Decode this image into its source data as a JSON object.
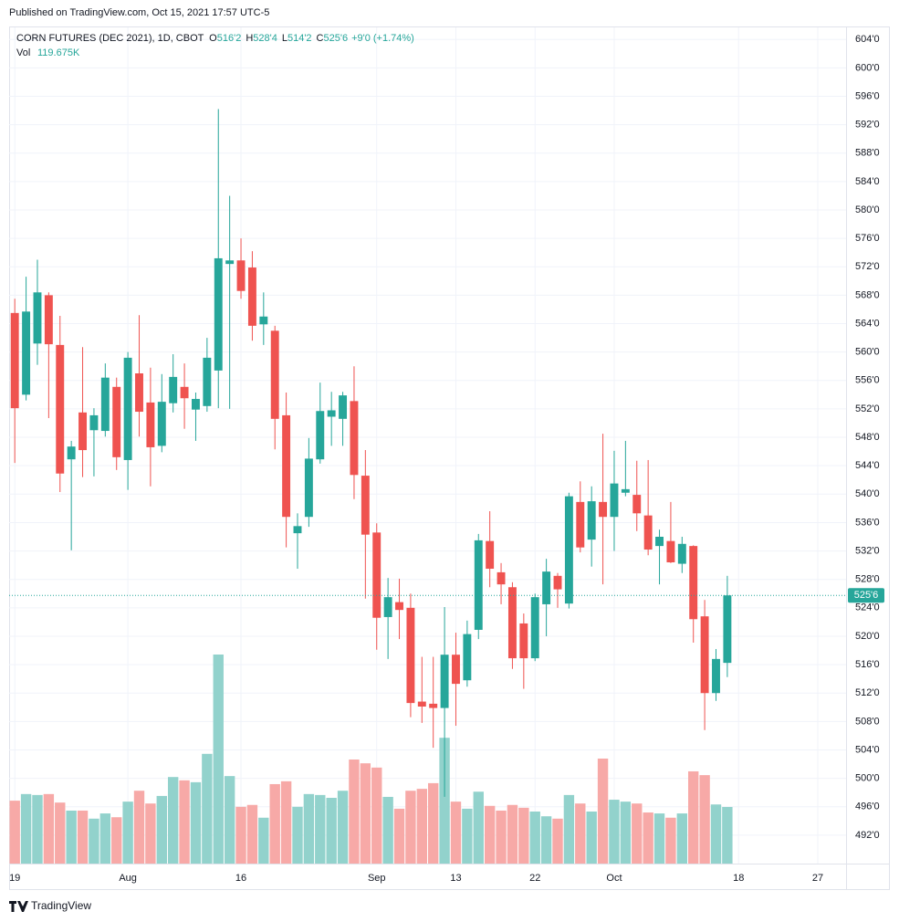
{
  "published": "Published on TradingView.com, Oct 15, 2021 17:57 UTC-5",
  "footer": "TradingView",
  "chart_data": {
    "type": "candlestick",
    "title": "CORN FUTURES (DEC 2021), 1D, CBOT",
    "ohlc_legend": [
      {
        "key": "O",
        "value": "516'2"
      },
      {
        "key": "H",
        "value": "528'4"
      },
      {
        "key": "L",
        "value": "514'2"
      },
      {
        "key": "C",
        "value": "525'6"
      }
    ],
    "change": "+9'0 (+1.74%)",
    "volume_name": "Vol",
    "volume_label": "119.675K",
    "last_price_label": "525'6",
    "up_color": "#26a69a",
    "down_color": "#ef5350",
    "volume_up_color": "#92d2cc",
    "volume_down_color": "#f7a9a7",
    "grid": true,
    "xlim": [
      -0.5,
      73.5
    ],
    "xticks": [
      {
        "value": 0,
        "label": "19"
      },
      {
        "value": 10,
        "label": "Aug"
      },
      {
        "value": 20,
        "label": "16"
      },
      {
        "value": 32,
        "label": "Sep"
      },
      {
        "value": 39,
        "label": "13"
      },
      {
        "value": 46,
        "label": "22"
      },
      {
        "value": 53,
        "label": "Oct"
      },
      {
        "value": 64,
        "label": "18"
      },
      {
        "value": 71,
        "label": "27"
      }
    ],
    "ylim": [
      488,
      605.7
    ],
    "yticks": [
      {
        "value": 492,
        "label": "492'0"
      },
      {
        "value": 496,
        "label": "496'0"
      },
      {
        "value": 500,
        "label": "500'0"
      },
      {
        "value": 504,
        "label": "504'0"
      },
      {
        "value": 508,
        "label": "508'0"
      },
      {
        "value": 512,
        "label": "512'0"
      },
      {
        "value": 516,
        "label": "516'0"
      },
      {
        "value": 520,
        "label": "520'0"
      },
      {
        "value": 524,
        "label": "524'0"
      },
      {
        "value": 528,
        "label": "528'0"
      },
      {
        "value": 532,
        "label": "532'0"
      },
      {
        "value": 536,
        "label": "536'0"
      },
      {
        "value": 540,
        "label": "540'0"
      },
      {
        "value": 544,
        "label": "544'0"
      },
      {
        "value": 548,
        "label": "548'0"
      },
      {
        "value": 552,
        "label": "552'0"
      },
      {
        "value": 556,
        "label": "556'0"
      },
      {
        "value": 560,
        "label": "560'0"
      },
      {
        "value": 564,
        "label": "564'0"
      },
      {
        "value": 568,
        "label": "568'0"
      },
      {
        "value": 572,
        "label": "572'0"
      },
      {
        "value": 576,
        "label": "576'0"
      },
      {
        "value": 580,
        "label": "580'0"
      },
      {
        "value": 584,
        "label": "584'0"
      },
      {
        "value": 588,
        "label": "588'0"
      },
      {
        "value": 592,
        "label": "592'0"
      },
      {
        "value": 596,
        "label": "596'0"
      },
      {
        "value": 600,
        "label": "600'0"
      },
      {
        "value": 604,
        "label": "604'0"
      }
    ],
    "y2lim": [
      0,
      1768
    ],
    "open": [
      565.5,
      554.0,
      561.2,
      568.0,
      561.0,
      544.9,
      551.5,
      549.0,
      548.9,
      555.1,
      544.8,
      557.0,
      552.9,
      546.8,
      552.8,
      555.1,
      551.9,
      552.4,
      557.4,
      572.4,
      572.9,
      571.9,
      563.9,
      563.0,
      551.1,
      534.5,
      536.8,
      544.9,
      550.9,
      550.6,
      553.1,
      542.6,
      534.6,
      522.7,
      524.8,
      524.0,
      510.8,
      510.5,
      509.9,
      517.4,
      513.8,
      520.9,
      533.4,
      529.0,
      526.9,
      521.8,
      516.9,
      524.5,
      528.5,
      524.6,
      538.9,
      533.6,
      538.9,
      536.8,
      540.2,
      539.9,
      537.0,
      532.7,
      533.4,
      530.2,
      532.7,
      522.8,
      512.0,
      516.25
    ],
    "high": [
      567.5,
      570.6,
      573.0,
      568.4,
      565.1,
      547.5,
      560.7,
      552.1,
      558.4,
      556.4,
      560.0,
      565.2,
      557.8,
      556.9,
      559.7,
      558.4,
      554.3,
      562.0,
      594.2,
      582.0,
      576.0,
      574.2,
      568.4,
      563.7,
      554.3,
      537.3,
      547.9,
      555.7,
      554.4,
      554.4,
      558.0,
      546.2,
      535.9,
      528.2,
      528.1,
      526.0,
      517.1,
      517.1,
      524.1,
      520.5,
      522.2,
      534.4,
      537.6,
      530.3,
      527.6,
      523.2,
      526.0,
      530.9,
      528.9,
      540.2,
      541.8,
      541.1,
      548.5,
      546.1,
      547.5,
      544.7,
      544.8,
      535.0,
      538.9,
      534.0,
      532.8,
      525.1,
      518.2,
      528.5
    ],
    "low": [
      544.4,
      553.2,
      558.2,
      550.7,
      540.3,
      532.1,
      542.4,
      542.5,
      548.1,
      543.4,
      540.6,
      548.1,
      541.1,
      545.9,
      551.5,
      549.2,
      547.5,
      551.6,
      552.1,
      552.0,
      567.5,
      561.6,
      561.0,
      546.3,
      532.5,
      529.5,
      535.4,
      544.3,
      546.8,
      546.8,
      539.3,
      525.3,
      518.1,
      516.8,
      519.6,
      508.6,
      507.8,
      504.3,
      497.4,
      507.4,
      512.9,
      519.6,
      526.9,
      524.5,
      515.4,
      512.6,
      516.5,
      520.0,
      524.0,
      523.9,
      531.8,
      529.8,
      527.3,
      532.0,
      539.7,
      534.8,
      531.4,
      527.3,
      530.3,
      528.9,
      519.1,
      506.8,
      510.9,
      514.25
    ],
    "close": [
      552.1,
      565.7,
      568.4,
      561.1,
      542.9,
      546.7,
      546.2,
      551.1,
      556.4,
      545.2,
      559.2,
      551.6,
      546.6,
      553.0,
      556.5,
      553.5,
      553.4,
      559.2,
      573.2,
      572.9,
      568.6,
      563.7,
      565.0,
      550.6,
      536.8,
      535.5,
      545.0,
      551.7,
      551.8,
      553.9,
      542.7,
      534.3,
      522.6,
      525.5,
      523.7,
      510.6,
      510.1,
      509.9,
      517.4,
      513.3,
      520.3,
      533.5,
      529.5,
      527.3,
      516.9,
      516.9,
      525.5,
      529.1,
      526.6,
      539.7,
      532.5,
      539.0,
      536.8,
      541.5,
      540.7,
      537.3,
      532.2,
      534.0,
      530.4,
      533.0,
      522.4,
      512.0,
      516.8,
      525.75
    ],
    "volume": [
      133,
      147,
      145,
      147,
      129,
      112,
      112,
      95,
      106,
      98,
      131,
      154,
      127,
      143,
      183,
      176,
      172,
      232,
      442,
      185,
      120,
      124,
      97,
      168,
      174,
      120,
      147,
      145,
      139,
      154,
      220,
      212,
      203,
      141,
      116,
      154,
      158,
      170,
      266,
      131,
      116,
      152,
      122,
      112,
      124,
      118,
      110,
      100,
      95,
      145,
      127,
      110,
      222,
      135,
      131,
      127,
      108,
      106,
      97,
      106,
      195,
      187,
      125,
      119.675
    ]
  }
}
